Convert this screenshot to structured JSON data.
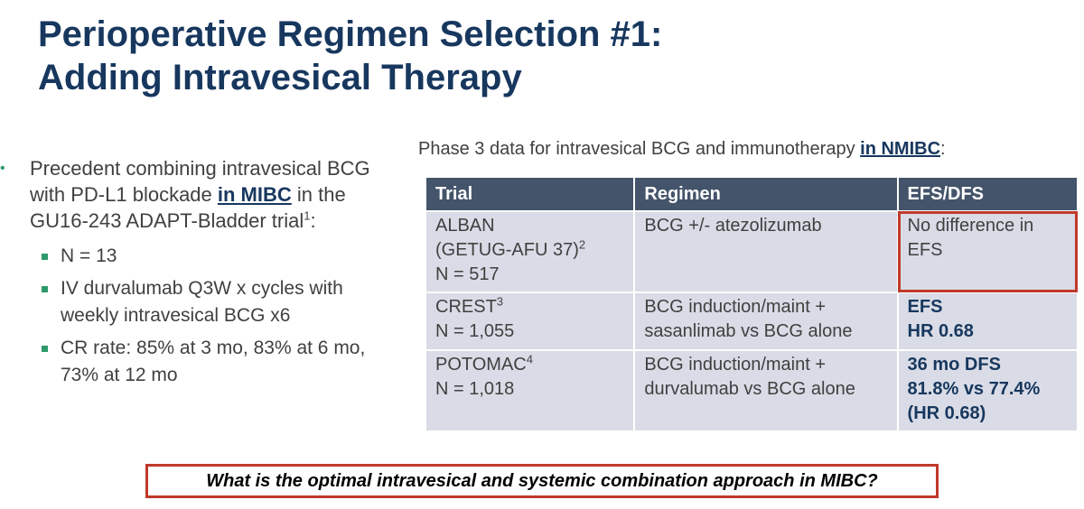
{
  "slide": {
    "title_line1": "Perioperative Regimen Selection #1:",
    "title_line2": "Adding Intravesical Therapy"
  },
  "left": {
    "bullet_pre": "Precedent combining intravesical BCG with PD-L1 blockade ",
    "bullet_emph": "in MIBC",
    "bullet_post1": " in the GU16-243 ADAPT-Bladder trial",
    "bullet_sup": "1",
    "bullet_post2": ":",
    "subitems": [
      "N = 13",
      "IV durvalumab Q3W x cycles with weekly intravesical BCG x6",
      "CR rate: 85% at 3 mo, 83% at 6 mo, 73% at 12 mo"
    ]
  },
  "caption": {
    "pre": "Phase 3 data for intravesical BCG and immunotherapy ",
    "emph": "in NMIBC",
    "post": ":"
  },
  "table": {
    "headers": [
      "Trial",
      "Regimen",
      "EFS/DFS"
    ],
    "rows": [
      {
        "trial_line1": "ALBAN",
        "trial_line2": "(GETUG-AFU 37)",
        "trial_sup": "2",
        "trial_line3": "N = 517",
        "regimen": "BCG +/- atezolizumab",
        "result_line1": "No difference in",
        "result_line2": "EFS"
      },
      {
        "trial_line1": "CREST",
        "trial_sup": "3",
        "trial_line2": "N = 1,055",
        "regimen_line1": "BCG induction/maint +",
        "regimen_line2": "sasanlimab vs BCG alone",
        "result_line1": "EFS",
        "result_line2": "HR 0.68"
      },
      {
        "trial_line1": "POTOMAC",
        "trial_sup": "4",
        "trial_line2": "N = 1,018",
        "regimen_line1": "BCG induction/maint +",
        "regimen_line2": "durvalumab vs BCG alone",
        "result_line1": "36 mo DFS",
        "result_line2": "81.8% vs 77.4%",
        "result_line3": "(HR 0.68)"
      }
    ]
  },
  "question": "What is the optimal intravesical and systemic combination approach in MIBC?"
}
